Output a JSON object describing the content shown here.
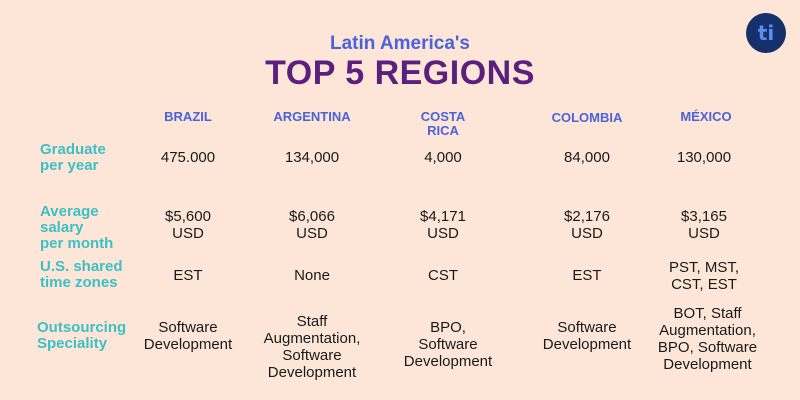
{
  "header": {
    "subtitle": "Latin America's",
    "title": "TOP 5 REGIONS",
    "logo_text": "ti"
  },
  "columns": [
    "BRAZIL",
    "ARGENTINA",
    "COSTA\nRICA",
    "COLOMBIA",
    "MÉXICO"
  ],
  "rows": [
    {
      "label": "Graduate\nper year",
      "values": [
        "475.000",
        "134,000",
        "4,000",
        "84,000",
        "130,000"
      ]
    },
    {
      "label": "Average\nsalary\nper month",
      "values": [
        "$5,600\nUSD",
        "$6,066\nUSD",
        "$4,171\nUSD",
        "$2,176\nUSD",
        "$3,165\nUSD"
      ]
    },
    {
      "label": "U.S. shared\ntime zones",
      "values": [
        "EST",
        "None",
        "CST",
        "EST",
        "PST, MST,\nCST, EST"
      ]
    },
    {
      "label": "Outsourcing\nSpeciality",
      "values": [
        "Software\nDevelopment",
        "Staff\nAugmentation,\nSoftware\nDevelopment",
        "BPO,\nSoftware\nDevelopment",
        "Software\nDevelopment",
        "BOT, Staff\nAugmentation,\nBPO, Software\nDevelopment"
      ]
    }
  ]
}
